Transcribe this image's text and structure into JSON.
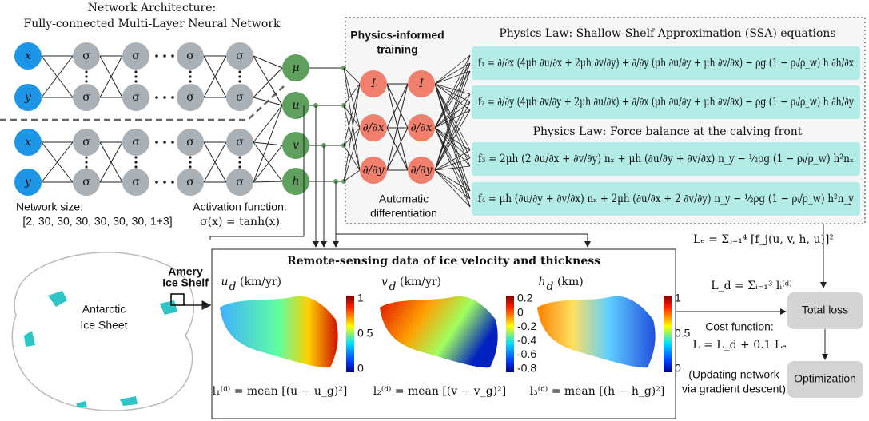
{
  "header": {
    "line1": "Network Architecture:",
    "line2": "Fully-connected Multi-Layer Neural Network"
  },
  "network": {
    "inputs": [
      "x",
      "y",
      "x",
      "y"
    ],
    "hidden": "σ",
    "outputs": [
      "μ",
      "u",
      "v",
      "h"
    ],
    "size_label": "Network size:",
    "size": "[2, 30, 30, 30, 30, 30, 30, 1+3]",
    "activation_label": "Activation function:",
    "activation": "σ(x) = tanh(x)"
  },
  "training": {
    "title": [
      "Physics-informed",
      "training"
    ],
    "nodes": [
      "I",
      "∂/∂x",
      "∂/∂y"
    ],
    "caption": [
      "Automatic",
      "differentiation"
    ]
  },
  "physics": {
    "ssa_title": "Physics Law: Shallow-Shelf Approximation (SSA) equations",
    "ssa": [
      "f₁ = ∂/∂x (4μh ∂u/∂x + 2μh ∂v/∂y) + ∂/∂y (μh ∂u/∂y + μh ∂v/∂x) − ρg (1 − ρᵢ/ρ_w) h ∂h/∂x",
      "f₂ = ∂/∂y (4μh ∂v/∂y + 2μh ∂u/∂x) + ∂/∂x (μh ∂u/∂y + μh ∂v/∂x) − ρg (1 − ρᵢ/ρ_w) h ∂h/∂y"
    ],
    "calving_title": "Physics Law: Force balance at the calving front",
    "calving": [
      "f₃ = 2μh (2 ∂u/∂x + ∂v/∂y) nₓ + μh (∂u/∂y + ∂v/∂x) n_y − ½ρg (1 − ρᵢ/ρ_w) h²nₓ",
      "f₄ = μh (∂u/∂y + ∂v/∂x) nₓ + 2μh (∂u/∂x + 2 ∂v/∂y) n_y − ½ρg (1 − ρᵢ/ρ_w) h²n_y"
    ]
  },
  "data": {
    "title": "Remote-sensing data of ice velocity and thickness",
    "panels": [
      {
        "var": "u",
        "sub": "d",
        "unit": "(km/yr)",
        "ticks": [
          "1",
          "0.5",
          "0"
        ],
        "loss": "l₁⁽ᵈ⁾ = mean [(u − u_g)²]"
      },
      {
        "var": "v",
        "sub": "d",
        "unit": "(km/yr)",
        "ticks": [
          "0.2",
          "0",
          "-0.2",
          "-0.4",
          "-0.6",
          "-0.8"
        ],
        "loss": "l₂⁽ᵈ⁾ = mean [(v − v_g)²]"
      },
      {
        "var": "h",
        "sub": "d",
        "unit": "(km)",
        "ticks": [
          "1",
          "0.5",
          "0"
        ],
        "loss": "l₃⁽ᵈ⁾ = mean [(h − h_g)²]"
      }
    ]
  },
  "map": {
    "region": [
      "Amery",
      "Ice Shelf"
    ],
    "continent": [
      "Antarctic",
      "Ice Sheet"
    ]
  },
  "loss": {
    "le": "Lₑ = Σⱼ₌₁⁴ [f_j(u, v, h, μ)]²",
    "ld": "L_d = Σᵢ₌₁³ lᵢ⁽ᵈ⁾",
    "total": "Total loss",
    "cost_label": "Cost function:",
    "cost": "L = L_d + 0.1 Lₑ",
    "optimization": "Optimization",
    "note": [
      "(Updating network",
      "via gradient descent)"
    ]
  }
}
